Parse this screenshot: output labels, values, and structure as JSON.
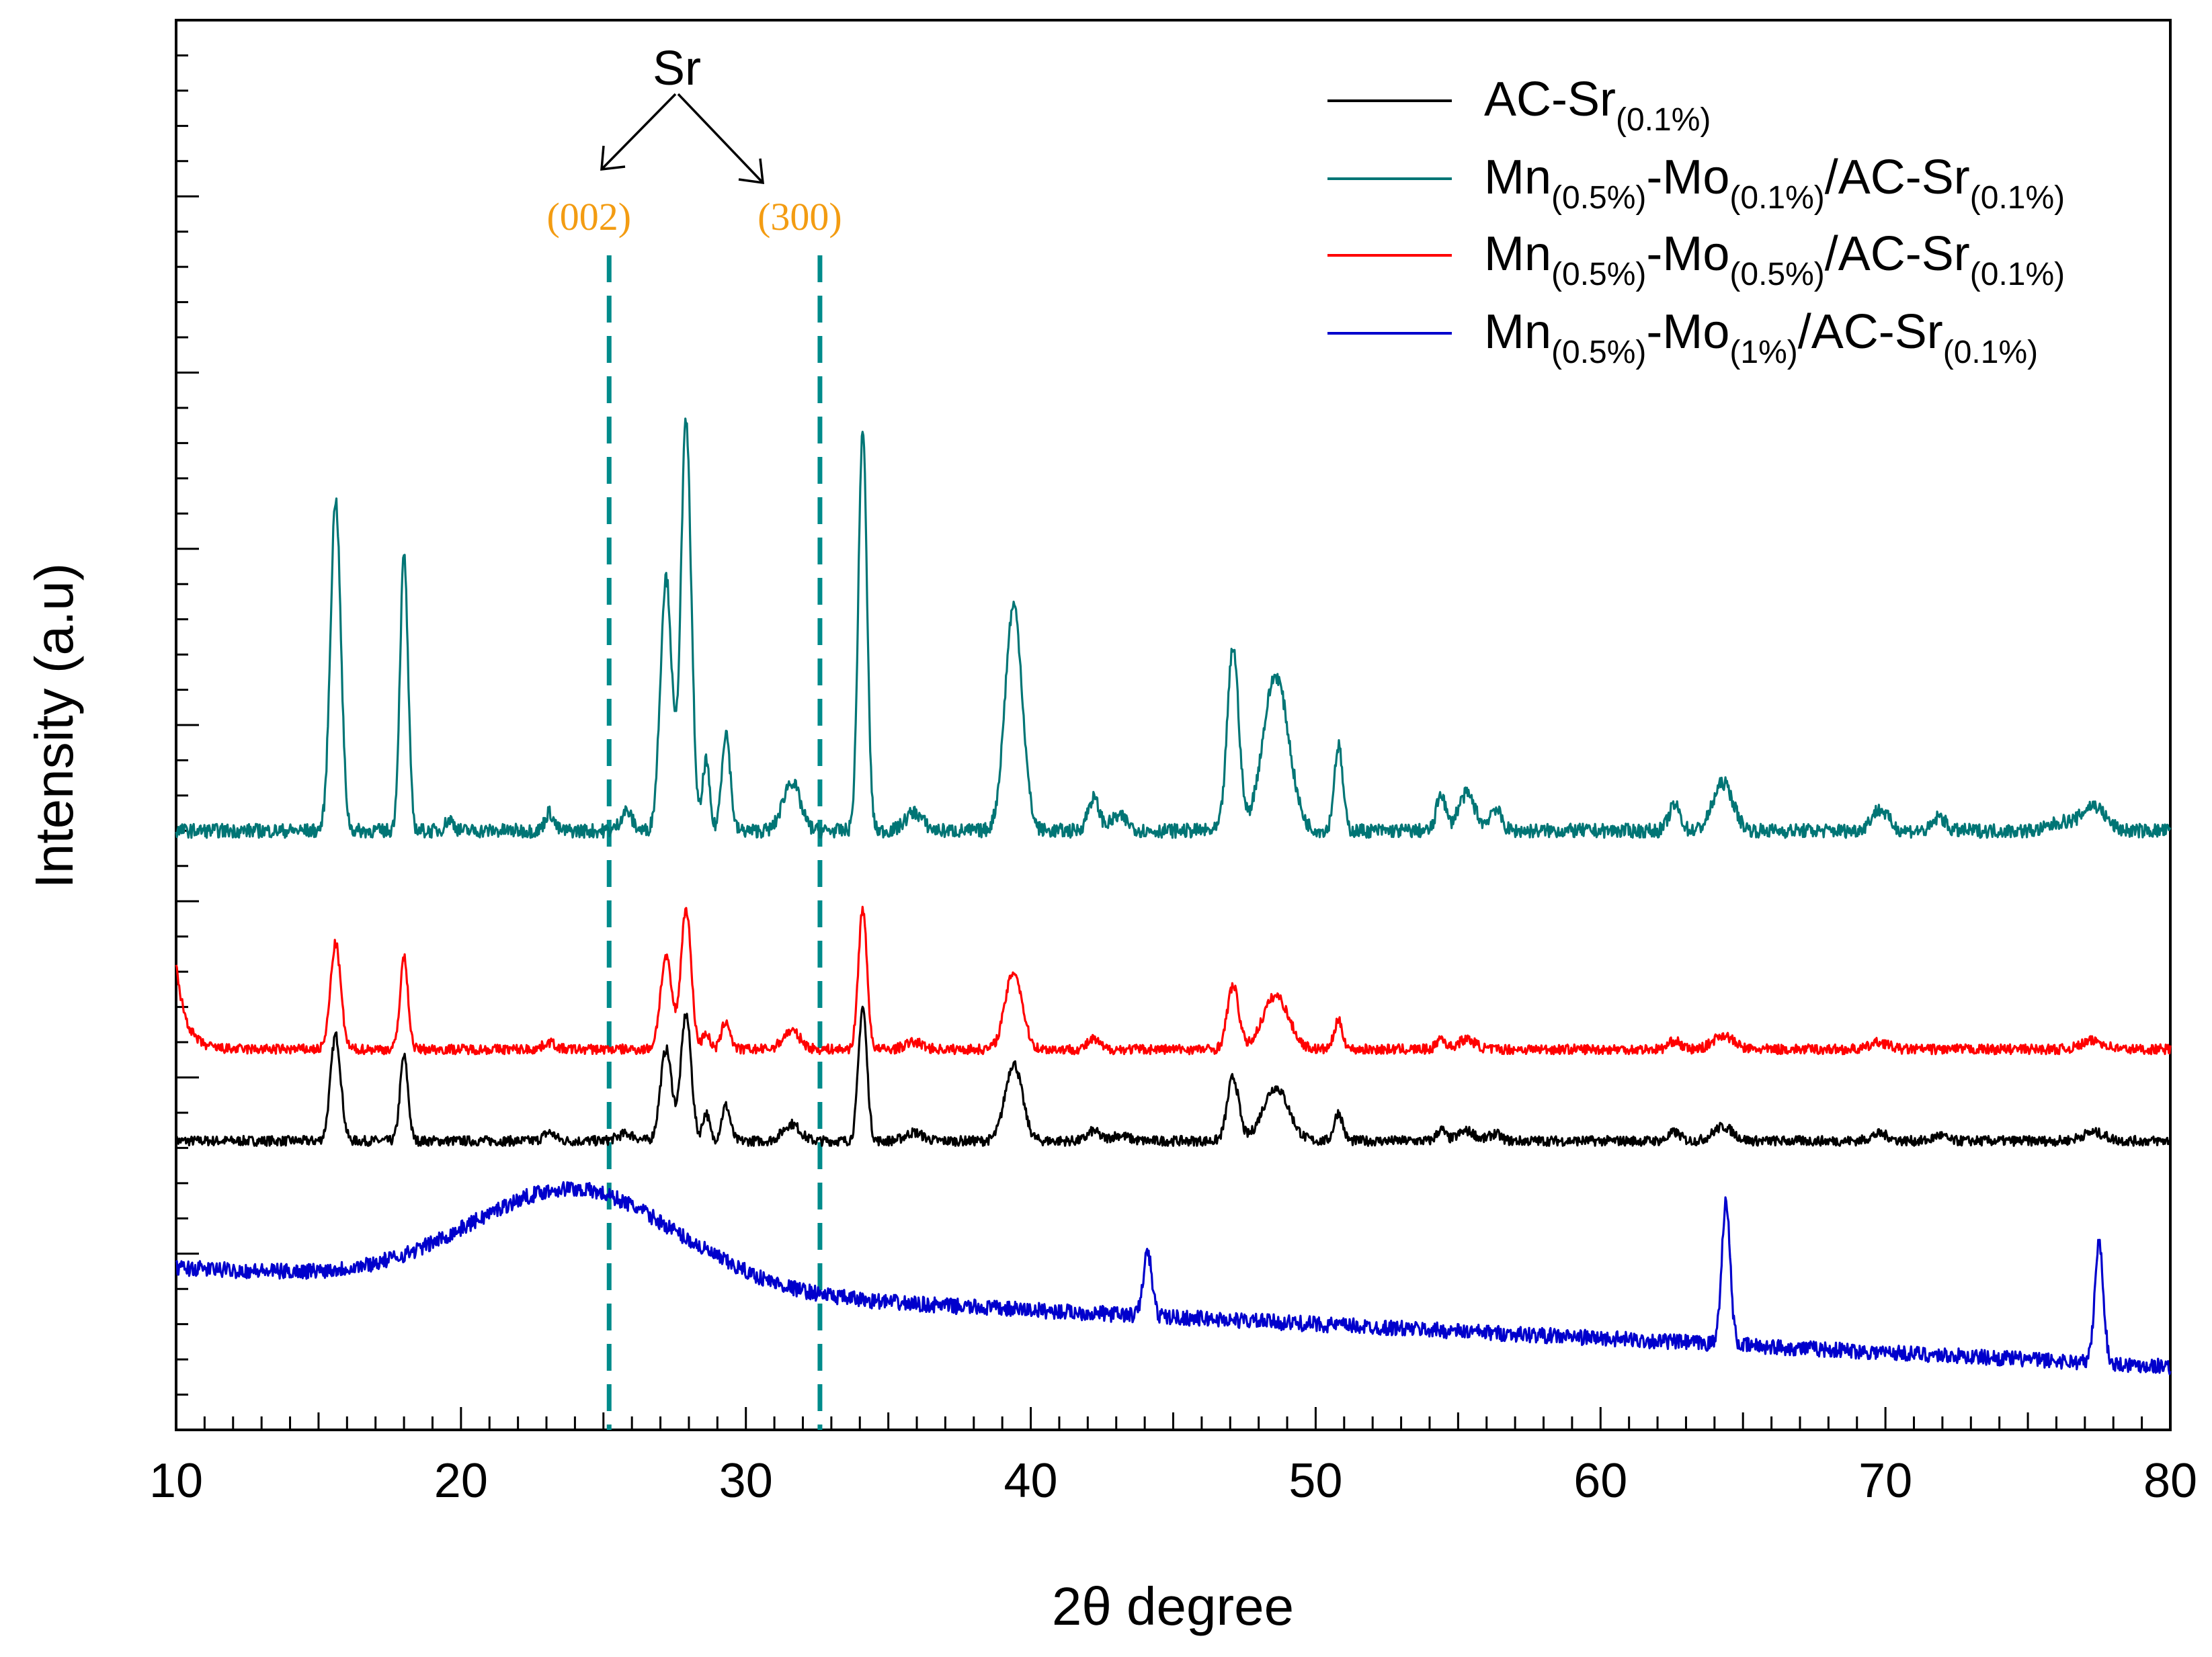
{
  "chart_data": {
    "type": "line",
    "title": "",
    "xlabel": "2θ degree",
    "ylabel": "Intensity (a.u)",
    "xlim": [
      10,
      80
    ],
    "ylim": [
      0,
      100
    ],
    "x_ticks": [
      "10",
      "20",
      "30",
      "40",
      "50",
      "60",
      "70",
      "80"
    ],
    "grid": false,
    "legend_position": "top-right",
    "series": [
      {
        "name": "AC-Sr(0.1%)",
        "legend_main": "AC-Sr",
        "legend_sub": "(0.1%)",
        "color": "#000000",
        "baseline": 20.5,
        "noise": 0.35,
        "peaks": [
          [
            15.6,
            7.5,
            0.18
          ],
          [
            18.0,
            6.0,
            0.14
          ],
          [
            23.1,
            0.6,
            0.2
          ],
          [
            25.8,
            0.5,
            0.3
          ],
          [
            27.2,
            6.5,
            0.2
          ],
          [
            27.9,
            9.0,
            0.18
          ],
          [
            28.6,
            2.0,
            0.12
          ],
          [
            29.3,
            2.5,
            0.15
          ],
          [
            31.6,
            1.2,
            0.3
          ],
          [
            34.1,
            9.5,
            0.15
          ],
          [
            35.9,
            0.6,
            0.3
          ],
          [
            39.4,
            5.5,
            0.3
          ],
          [
            42.2,
            0.7,
            0.2
          ],
          [
            43.1,
            0.4,
            0.3
          ],
          [
            47.1,
            4.5,
            0.2
          ],
          [
            48.6,
            3.8,
            0.45
          ],
          [
            50.8,
            2.0,
            0.15
          ],
          [
            54.4,
            0.8,
            0.15
          ],
          [
            55.3,
            0.7,
            0.3
          ],
          [
            56.3,
            0.5,
            0.2
          ],
          [
            62.6,
            0.6,
            0.2
          ],
          [
            64.3,
            1.0,
            0.35
          ],
          [
            69.8,
            0.5,
            0.3
          ],
          [
            71.9,
            0.4,
            0.2
          ],
          [
            77.3,
            0.6,
            0.4
          ]
        ]
      },
      {
        "name": "Mn(0.5%)-Mo(0.1%)/AC-Sr(0.1%)",
        "legend_parts": [
          [
            "Mn",
            "(0.5%)"
          ],
          [
            "-Mo",
            "(0.1%)"
          ],
          [
            "/AC-Sr",
            "(0.1%)"
          ]
        ],
        "color": "#007575",
        "baseline": 42.5,
        "noise": 0.5,
        "peaks": [
          [
            15.6,
            23.5,
            0.18
          ],
          [
            18.0,
            19.5,
            0.14
          ],
          [
            19.6,
            0.8,
            0.15
          ],
          [
            23.1,
            1.3,
            0.15
          ],
          [
            25.8,
            1.4,
            0.2
          ],
          [
            27.2,
            18.0,
            0.2
          ],
          [
            27.9,
            29.0,
            0.18
          ],
          [
            28.6,
            5.0,
            0.12
          ],
          [
            29.3,
            7.0,
            0.15
          ],
          [
            31.6,
            3.5,
            0.3
          ],
          [
            34.1,
            28.5,
            0.15
          ],
          [
            35.9,
            1.3,
            0.3
          ],
          [
            39.4,
            16.0,
            0.3
          ],
          [
            42.2,
            2.3,
            0.2
          ],
          [
            43.1,
            1.0,
            0.3
          ],
          [
            47.1,
            13.0,
            0.2
          ],
          [
            48.6,
            11.0,
            0.45
          ],
          [
            50.8,
            6.0,
            0.15
          ],
          [
            54.4,
            2.7,
            0.15
          ],
          [
            55.3,
            2.6,
            0.3
          ],
          [
            56.3,
            1.6,
            0.2
          ],
          [
            62.6,
            1.8,
            0.2
          ],
          [
            64.3,
            3.4,
            0.35
          ],
          [
            69.8,
            1.5,
            0.3
          ],
          [
            71.9,
            1.0,
            0.2
          ],
          [
            76.2,
            0.6,
            0.4
          ],
          [
            77.3,
            1.8,
            0.4
          ]
        ]
      },
      {
        "name": "Mn(0.5%)-Mo(0.5%)/AC-Sr(0.1%)",
        "legend_parts": [
          [
            "Mn",
            "(0.5%)"
          ],
          [
            "-Mo",
            "(0.5%)"
          ],
          [
            "/AC-Sr",
            "(0.1%)"
          ]
        ],
        "color": "#ff0000",
        "baseline": 27.0,
        "noise": 0.35,
        "edge_rise": 6.0,
        "peaks": [
          [
            15.6,
            7.5,
            0.18
          ],
          [
            18.0,
            6.5,
            0.14
          ],
          [
            23.1,
            0.5,
            0.2
          ],
          [
            27.2,
            6.5,
            0.2
          ],
          [
            27.9,
            10.0,
            0.18
          ],
          [
            28.6,
            1.2,
            0.12
          ],
          [
            29.3,
            2.0,
            0.15
          ],
          [
            31.6,
            1.3,
            0.3
          ],
          [
            34.1,
            10.0,
            0.15
          ],
          [
            35.9,
            0.5,
            0.3
          ],
          [
            39.4,
            5.5,
            0.3
          ],
          [
            42.2,
            0.7,
            0.2
          ],
          [
            47.1,
            4.5,
            0.2
          ],
          [
            48.6,
            3.8,
            0.45
          ],
          [
            50.8,
            2.0,
            0.15
          ],
          [
            54.4,
            0.8,
            0.15
          ],
          [
            55.3,
            0.7,
            0.3
          ],
          [
            62.6,
            0.6,
            0.2
          ],
          [
            64.3,
            1.0,
            0.35
          ],
          [
            69.8,
            0.5,
            0.3
          ],
          [
            77.3,
            0.6,
            0.4
          ]
        ]
      },
      {
        "name": "Mn(0.5%)-Mo(1%)/AC-Sr(0.1%)",
        "legend_parts": [
          [
            "Mn",
            "(0.5%)"
          ],
          [
            "-Mo",
            "(1%)"
          ],
          [
            "/AC-Sr",
            "(0.1%)"
          ]
        ],
        "color": "#0000cc",
        "baseline": 4.5,
        "noise": 0.55,
        "broad_hump": [
          24.0,
          7.0,
          3.6
        ],
        "linear_drop": [
          10,
          11.5,
          80,
          4.5
        ],
        "peaks": [
          [
            44.1,
            4.5,
            0.15
          ],
          [
            64.4,
            10.0,
            0.15
          ],
          [
            77.5,
            8.5,
            0.15
          ]
        ]
      }
    ],
    "reference_lines": [
      {
        "x": 25.2,
        "label": "(002)",
        "color": "#008b8b"
      },
      {
        "x": 32.6,
        "label": "(300)",
        "color": "#008b8b"
      }
    ],
    "annotation": {
      "text": "Sr",
      "label_color": "#f39c12"
    }
  }
}
